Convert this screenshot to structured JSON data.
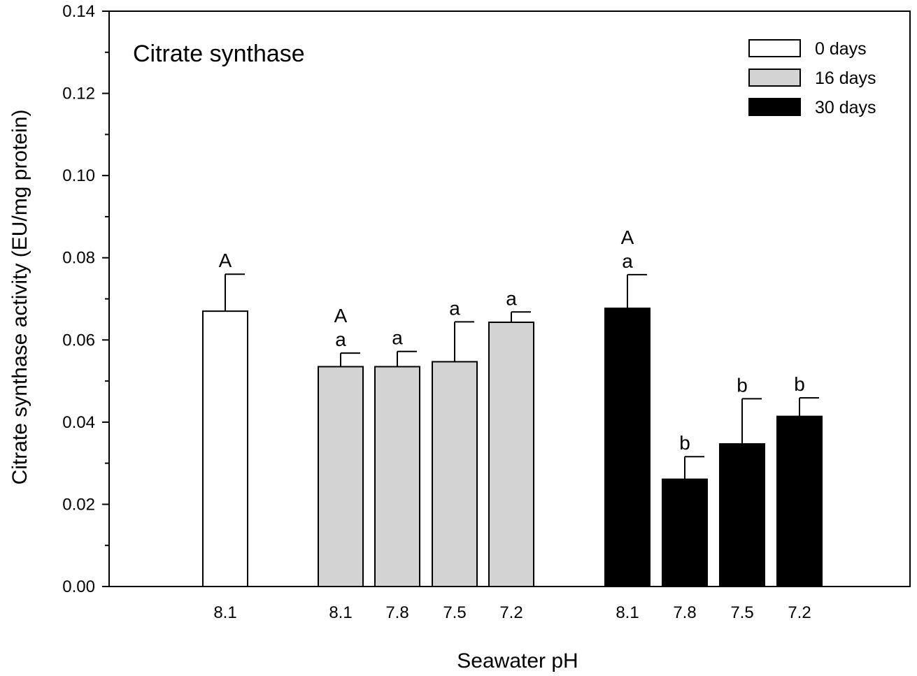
{
  "chart_data": {
    "type": "bar",
    "title": "Citrate synthase",
    "xlabel": "Seawater pH",
    "ylabel": "Citrate synthase activity (EU/mg protein)",
    "ylim": [
      0,
      0.14
    ],
    "yticks": [
      "0.00",
      "0.02",
      "0.04",
      "0.06",
      "0.08",
      "0.10",
      "0.12",
      "0.14"
    ],
    "legend_position": "top-right",
    "grid": false,
    "series": [
      {
        "name": "0 days",
        "color": "#ffffff",
        "categories": [
          "8.1"
        ],
        "values": [
          0.067
        ],
        "errors": [
          0.009
        ],
        "letters": [
          [
            "A"
          ]
        ]
      },
      {
        "name": "16 days",
        "color": "#d3d3d3",
        "categories": [
          "8.1",
          "7.8",
          "7.5",
          "7.2"
        ],
        "values": [
          0.0535,
          0.0535,
          0.0547,
          0.0643
        ],
        "errors": [
          0.0033,
          0.0037,
          0.0097,
          0.0025
        ],
        "letters": [
          [
            "A",
            "a"
          ],
          [
            "a"
          ],
          [
            "a"
          ],
          [
            "a"
          ]
        ]
      },
      {
        "name": "30 days",
        "color": "#000000",
        "categories": [
          "8.1",
          "7.8",
          "7.5",
          "7.2"
        ],
        "values": [
          0.0677,
          0.0261,
          0.0347,
          0.0414
        ],
        "errors": [
          0.0082,
          0.0055,
          0.011,
          0.0045
        ],
        "letters": [
          [
            "A",
            "a"
          ],
          [
            "b"
          ],
          [
            "b"
          ],
          [
            "b"
          ]
        ]
      }
    ]
  }
}
